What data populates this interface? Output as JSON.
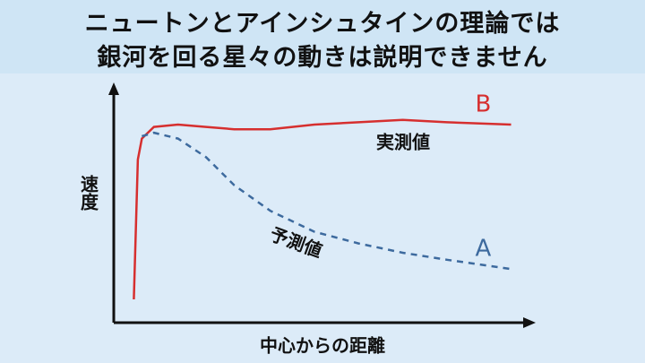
{
  "chart_data": {
    "type": "line",
    "title": [
      "ニュートンとアインシュタインの理論では",
      "銀河を回る星々の動きは説明できません"
    ],
    "y_label": "速度",
    "x_label": "中心からの距離",
    "x": [
      5,
      6,
      7,
      10,
      16,
      23,
      30,
      39,
      50,
      61,
      72,
      83,
      99
    ],
    "series": [
      {
        "name": "B",
        "color": "#d62f2f",
        "dashed": false,
        "annotation": "実測値",
        "values": [
          10,
          70,
          79,
          84,
          85,
          84,
          83,
          83,
          85,
          86,
          87,
          86,
          85
        ]
      },
      {
        "name": "A",
        "color": "#3d6a9e",
        "dashed": true,
        "annotation": "予測値",
        "values": [
          null,
          null,
          80,
          81.5,
          79,
          71,
          59,
          48,
          39,
          34,
          30,
          27,
          23
        ]
      }
    ],
    "xlim": [
      0,
      100
    ],
    "ylim": [
      0,
      100
    ]
  }
}
